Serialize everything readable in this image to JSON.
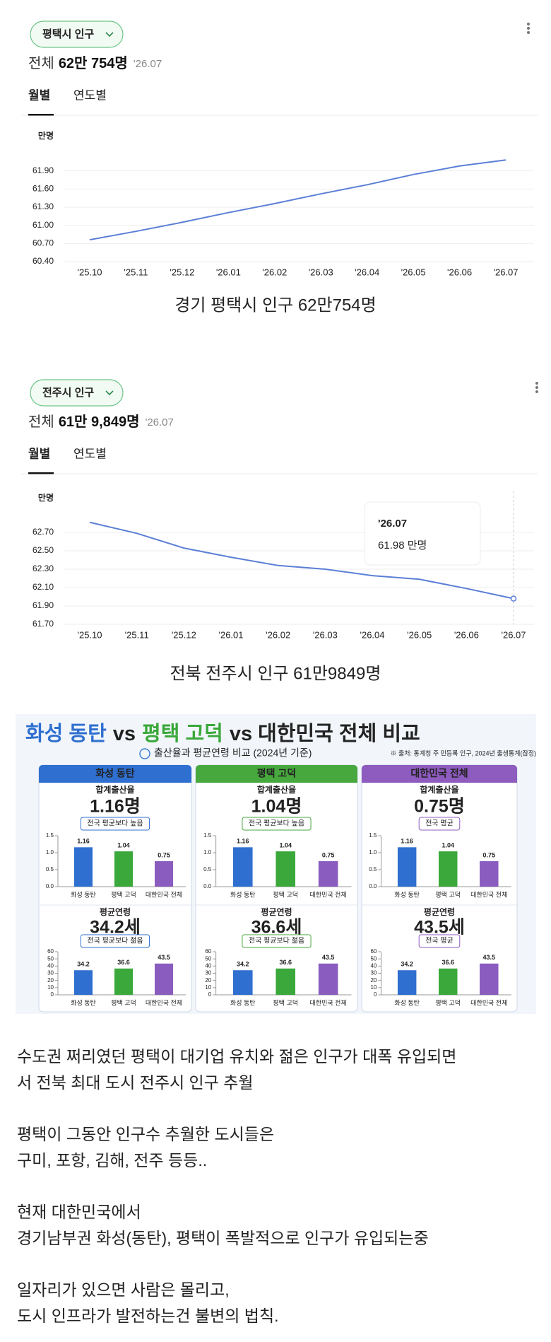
{
  "chart_data": [
    {
      "type": "line",
      "chip": "평택시 인구",
      "total_label": "전체",
      "total_value": "62만 754명",
      "date": "'26.07",
      "tabs": [
        "월별",
        "연도별"
      ],
      "y_unit": "만명",
      "categories": [
        "'25.10",
        "'25.11",
        "'25.12",
        "'26.01",
        "'26.02",
        "'26.03",
        "'26.04",
        "'26.05",
        "'26.06",
        "'26.07"
      ],
      "values": [
        60.76,
        60.9,
        61.05,
        61.21,
        61.36,
        61.52,
        61.67,
        61.84,
        61.98,
        62.08
      ],
      "color": "#5b7fd6",
      "ylim": [
        60.4,
        62.2
      ],
      "yticks": [
        {
          "value": 60.4,
          "label": "60.40"
        },
        {
          "value": 60.7,
          "label": "60.70"
        },
        {
          "value": 61,
          "label": "61.00"
        },
        {
          "value": 61.3,
          "label": "61.30"
        },
        {
          "value": 61.6,
          "label": "61.60"
        },
        {
          "value": 61.9,
          "label": "61.90"
        }
      ],
      "grid": true,
      "caption": "경기 평택시 인구 62만754명"
    },
    {
      "type": "line",
      "chip": "전주시 인구",
      "total_label": "전체",
      "total_value": "61만 9,849명",
      "date": "'26.07",
      "tabs": [
        "월별",
        "연도별"
      ],
      "y_unit": "만명",
      "categories": [
        "'25.10",
        "'25.11",
        "'25.12",
        "'26.01",
        "'26.02",
        "'26.03",
        "'26.04",
        "'26.05",
        "'26.06",
        "'26.07"
      ],
      "values": [
        62.81,
        62.69,
        62.53,
        62.43,
        62.34,
        62.3,
        62.23,
        62.19,
        62.09,
        61.98
      ],
      "color": "#5b7fd6",
      "ylim": [
        61.7,
        62.9
      ],
      "yticks": [
        {
          "value": 61.7,
          "label": "61.70"
        },
        {
          "value": 61.9,
          "label": "61.90"
        },
        {
          "value": 62.1,
          "label": "62.10"
        },
        {
          "value": 62.3,
          "label": "62.30"
        },
        {
          "value": 62.5,
          "label": "62.50"
        },
        {
          "value": 62.7,
          "label": "62.70"
        }
      ],
      "grid": true,
      "tooltip": {
        "title": "'26.07",
        "text": "61.98 만명"
      },
      "caption": "전북 전주시 인구 61만9849명"
    },
    {
      "type": "bar",
      "title": "합계출산율",
      "headline": "1.16명",
      "badge": "전국 평균보다 높음",
      "categories": [
        "화성 동탄",
        "평택 고덕",
        "대한민국 전체"
      ],
      "values": [
        1.16,
        1.04,
        0.75
      ],
      "colors": [
        "#2f6fd0",
        "#3aa83a",
        "#8a5cc0"
      ],
      "ylim": [
        0,
        1.5
      ],
      "yticks": [
        {
          "value": 0,
          "label": "0.0"
        },
        {
          "value": 0.5,
          "label": "0.5"
        },
        {
          "value": 1,
          "label": "1.0"
        },
        {
          "value": 1.5,
          "label": "1.5"
        }
      ]
    },
    {
      "type": "bar",
      "title": "평균연령",
      "headline": "34.2세",
      "badge": "전국 평균보다 젊음",
      "categories": [
        "화성 동탄",
        "평택 고덕",
        "대한민국 전체"
      ],
      "values": [
        34.2,
        36.6,
        43.5
      ],
      "colors": [
        "#2f6fd0",
        "#3aa83a",
        "#8a5cc0"
      ],
      "ylim": [
        0,
        60
      ],
      "yticks": [
        0,
        10,
        20,
        30,
        40,
        50,
        60
      ]
    },
    {
      "type": "bar",
      "title": "합계출산율",
      "headline": "1.04명",
      "badge": "전국 평균보다 높음",
      "categories": [
        "화성 동탄",
        "평택 고덕",
        "대한민국 전체"
      ],
      "values": [
        1.16,
        1.04,
        0.75
      ],
      "colors": [
        "#2f6fd0",
        "#3aa83a",
        "#8a5cc0"
      ],
      "ylim": [
        0,
        1.5
      ],
      "yticks": [
        {
          "value": 0,
          "label": "0.0"
        },
        {
          "value": 0.5,
          "label": "0.5"
        },
        {
          "value": 1,
          "label": "1.0"
        },
        {
          "value": 1.5,
          "label": "1.5"
        }
      ]
    },
    {
      "type": "bar",
      "title": "평균연령",
      "headline": "36.6세",
      "badge": "전국 평균보다 젊음",
      "categories": [
        "화성 동탄",
        "평택 고덕",
        "대한민국 전체"
      ],
      "values": [
        34.2,
        36.6,
        43.5
      ],
      "colors": [
        "#2f6fd0",
        "#3aa83a",
        "#8a5cc0"
      ],
      "ylim": [
        0,
        60
      ],
      "yticks": [
        0,
        10,
        20,
        30,
        40,
        50,
        60
      ]
    },
    {
      "type": "bar",
      "title": "합계출산율",
      "headline": "0.75명",
      "badge": "전국 평균",
      "categories": [
        "화성 동탄",
        "평택 고덕",
        "대한민국 전체"
      ],
      "values": [
        1.16,
        1.04,
        0.75
      ],
      "colors": [
        "#2f6fd0",
        "#3aa83a",
        "#8a5cc0"
      ],
      "ylim": [
        0,
        1.5
      ],
      "yticks": [
        {
          "value": 0,
          "label": "0.0"
        },
        {
          "value": 0.5,
          "label": "0.5"
        },
        {
          "value": 1,
          "label": "1.0"
        },
        {
          "value": 1.5,
          "label": "1.5"
        }
      ]
    },
    {
      "type": "bar",
      "title": "평균연령",
      "headline": "43.5세",
      "badge": "전국 평균",
      "categories": [
        "화성 동탄",
        "평택 고덕",
        "대한민국 전체"
      ],
      "values": [
        34.2,
        36.6,
        43.5
      ],
      "colors": [
        "#2f6fd0",
        "#3aa83a",
        "#8a5cc0"
      ],
      "ylim": [
        0,
        60
      ],
      "yticks": [
        0,
        10,
        20,
        30,
        40,
        50,
        60
      ]
    }
  ],
  "infographic": {
    "title_parts": [
      "화성 동탄",
      "vs",
      "평택 고덕",
      "vs 대한민국 전체 비교"
    ],
    "subtitle": "출산율과 평균연령 비교 (2024년 기준)",
    "source": "※ 출처: 통계청 주 민등록 인구, 2024년 출생통계(잠정)",
    "panels": [
      "화성 동탄",
      "평택 고덕",
      "대한민국 전체"
    ]
  },
  "body": {
    "paragraphs": [
      [
        "수도권 쩌리였던 평택이 대기업 유치와 젊은 인구가 대폭 유입되면",
        "서 전북 최대 도시 전주시 인구 추월"
      ],
      [
        "평택이 그동안 인구수 추월한 도시들은",
        "구미, 포항, 김해, 전주 등등.."
      ],
      [
        "현재 대한민국에서",
        "경기남부권 화성(동탄), 평택이 폭발적으로 인구가 유입되는중"
      ],
      [
        "일자리가 있으면 사람은 몰리고,",
        "도시 인프라가 발전하는건 불변의 법칙."
      ]
    ]
  }
}
